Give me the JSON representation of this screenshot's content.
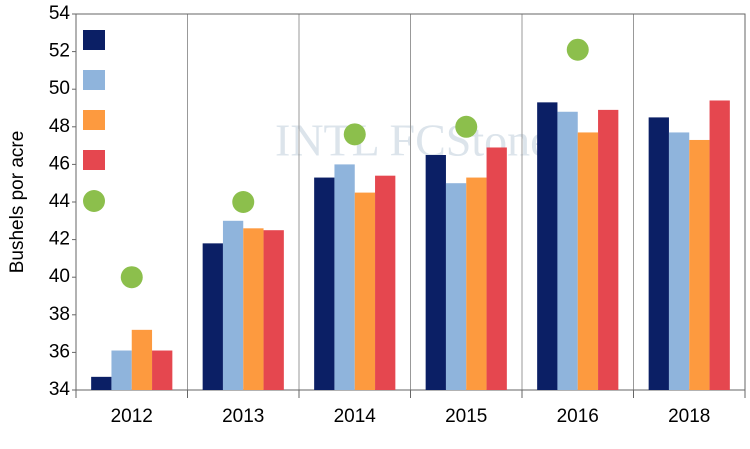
{
  "chart_data": {
    "type": "bar",
    "y_label": "Bushels por acre",
    "watermark": "INTL FCStone",
    "categories": [
      "2012",
      "2013",
      "2014",
      "2015",
      "2016",
      "2018"
    ],
    "series": [
      {
        "kind": "bar",
        "color": "#0b1f65",
        "values": [
          34.7,
          41.8,
          45.3,
          46.5,
          49.3,
          48.5
        ]
      },
      {
        "kind": "bar",
        "color": "#8fb4dc",
        "values": [
          36.1,
          43.0,
          46.0,
          45.0,
          48.8,
          47.7
        ]
      },
      {
        "kind": "bar",
        "color": "#fd9a3f",
        "values": [
          37.2,
          42.6,
          44.5,
          45.3,
          47.7,
          47.3
        ]
      },
      {
        "kind": "bar",
        "color": "#e5474f",
        "values": [
          36.1,
          42.5,
          45.4,
          46.9,
          48.9,
          49.4
        ]
      },
      {
        "kind": "dot",
        "color": "#8cbf4c",
        "values": [
          40.0,
          44.0,
          47.6,
          48.0,
          52.1,
          null
        ]
      }
    ],
    "ylim": [
      34,
      54
    ],
    "yticks": [
      34,
      36,
      38,
      40,
      42,
      44,
      46,
      48,
      50,
      52,
      54
    ],
    "vertical_grid": true,
    "legend": "top-left"
  }
}
